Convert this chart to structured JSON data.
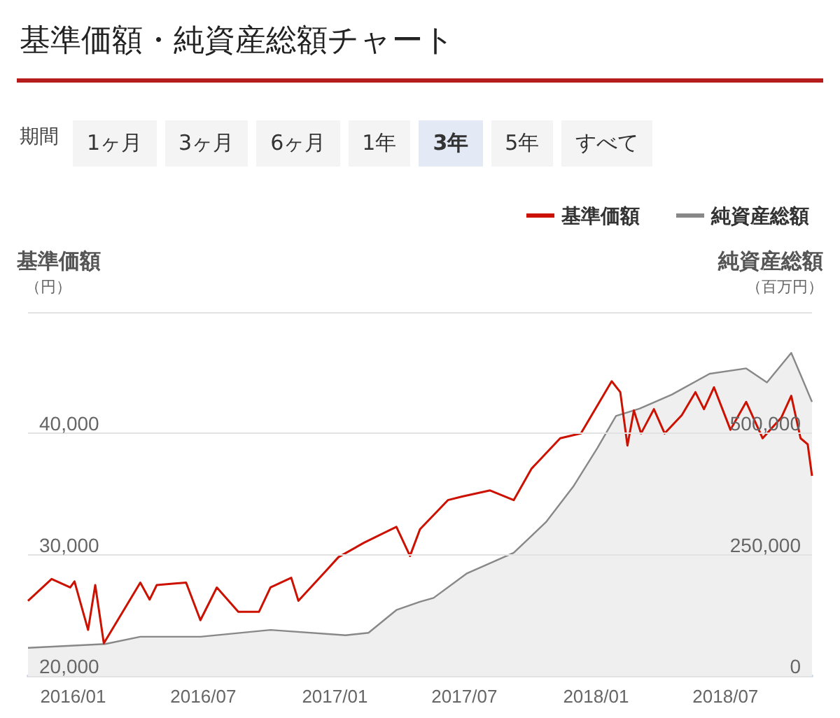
{
  "chart_data": {
    "type": "line",
    "title": "基準価額・純資産総額チャート",
    "annotations": [
      "期間",
      "1ヶ月",
      "3ヶ月",
      "6ヶ月",
      "1年",
      "3年",
      "5年",
      "すべて"
    ],
    "ylabel": "基準価額（円）",
    "y2label": "純資産総額（百万円）",
    "xlim": [
      "2015-10-30",
      "2018-10-30"
    ],
    "xticks": [
      {
        "value": "2016-01",
        "label": "2016/01"
      },
      {
        "value": "2016-07",
        "label": "2016/07"
      },
      {
        "value": "2017-01",
        "label": "2017/01"
      },
      {
        "value": "2017-07",
        "label": "2017/07"
      },
      {
        "value": "2018-01",
        "label": "2018/01"
      },
      {
        "value": "2018-07",
        "label": "2018/07"
      }
    ],
    "ylim": [
      20000,
      50000
    ],
    "yticks": [
      {
        "value": 20000,
        "label": "20,000"
      },
      {
        "value": 30000,
        "label": "30,000"
      },
      {
        "value": 40000,
        "label": "40,000"
      },
      {
        "value": 50000,
        "label": null
      }
    ],
    "y2lim": [
      0,
      750000
    ],
    "y2ticks": [
      0,
      {
        "value": 250000,
        "label": "250,000"
      },
      {
        "value": 500000,
        "label": "500,000"
      },
      {
        "value": 750000,
        "label": null
      }
    ],
    "grid": "y",
    "legend": "top right",
    "marker": "none",
    "line_style": "solid",
    "series": [
      {
        "name": "純資産総額",
        "type": "area",
        "axis": "y2",
        "color": "#888888",
        "x": [
          "2015-10-30",
          "2016-02-15",
          "2016-04-04",
          "2016-06-27",
          "2016-10-03",
          "2017-01-16",
          "2017-02-17",
          "2017-03-28",
          "2017-04-30",
          "2017-05-19",
          "2017-07-04",
          "2017-09-08",
          "2017-10-23",
          "2017-12-01",
          "2018-01-03",
          "2018-01-29",
          "2018-03-03",
          "2018-04-17",
          "2018-06-09",
          "2018-07-30",
          "2018-08-28",
          "2018-10-01",
          "2018-10-16",
          "2018-10-30"
        ],
        "values": [
          58000,
          66000,
          81000,
          81000,
          95000,
          84000,
          89000,
          136000,
          153000,
          161000,
          211000,
          254000,
          317000,
          392000,
          470000,
          536000,
          551000,
          580000,
          623000,
          634000,
          605000,
          666000,
          614000,
          565000
        ]
      },
      {
        "name": "基準価額",
        "axis": "y",
        "color": "#cc1100",
        "x": [
          "2015-10-30",
          "2015-12-02",
          "2015-12-28",
          "2016-01-03",
          "2016-01-22",
          "2016-02-01",
          "2016-02-13",
          "2016-04-04",
          "2016-04-17",
          "2016-04-27",
          "2016-06-07",
          "2016-06-27",
          "2016-07-20",
          "2016-08-19",
          "2016-09-17",
          "2016-10-03",
          "2016-11-01",
          "2016-11-11",
          "2016-12-20",
          "2017-01-06",
          "2017-02-11",
          "2017-03-28",
          "2017-04-16",
          "2017-04-30",
          "2017-06-08",
          "2017-06-28",
          "2017-08-06",
          "2017-09-08",
          "2017-10-03",
          "2017-11-12",
          "2017-12-11",
          "2018-01-23",
          "2018-02-04",
          "2018-02-14",
          "2018-02-23",
          "2018-03-05",
          "2018-03-23",
          "2018-04-07",
          "2018-05-01",
          "2018-05-20",
          "2018-06-01",
          "2018-06-15",
          "2018-07-08",
          "2018-07-30",
          "2018-08-22",
          "2018-09-17",
          "2018-10-01",
          "2018-10-14",
          "2018-10-24",
          "2018-10-30"
        ],
        "values": [
          26200,
          28000,
          27300,
          27800,
          23800,
          27500,
          22700,
          27700,
          26300,
          27500,
          27700,
          24600,
          27300,
          25300,
          25300,
          27300,
          28100,
          26200,
          28700,
          29800,
          31000,
          32300,
          29900,
          32100,
          34500,
          34800,
          35300,
          34500,
          37100,
          39600,
          40000,
          44300,
          43400,
          39000,
          41900,
          40000,
          42000,
          40000,
          41500,
          43400,
          42000,
          43800,
          40300,
          42600,
          39600,
          41300,
          43100,
          39600,
          39100,
          36500
        ]
      }
    ]
  }
}
